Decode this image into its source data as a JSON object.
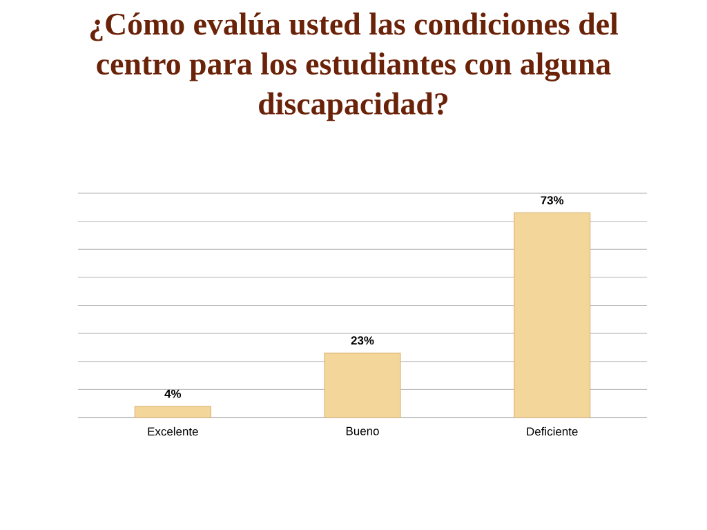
{
  "chart_data": {
    "type": "bar",
    "title": "¿Cómo evalúa usted las condiciones del centro para los estudiantes con alguna discapacidad?",
    "categories": [
      "Excelente",
      "Bueno",
      "Deficiente"
    ],
    "values": [
      4,
      23,
      73
    ],
    "value_labels": [
      "4%",
      "23%",
      "73%"
    ],
    "color": "#f3d79a",
    "ylim": [
      0,
      80
    ],
    "yticks": [
      {
        "value": 0,
        "label": null
      },
      {
        "value": 10,
        "label": null
      },
      {
        "value": 20,
        "label": null
      },
      {
        "value": 30,
        "label": null
      },
      {
        "value": 40,
        "label": null
      },
      {
        "value": 50,
        "label": null
      },
      {
        "value": 60,
        "label": null
      },
      {
        "value": 70,
        "label": null
      },
      {
        "value": 80,
        "label": null
      }
    ],
    "grid": "y",
    "tick_labels": "x"
  }
}
